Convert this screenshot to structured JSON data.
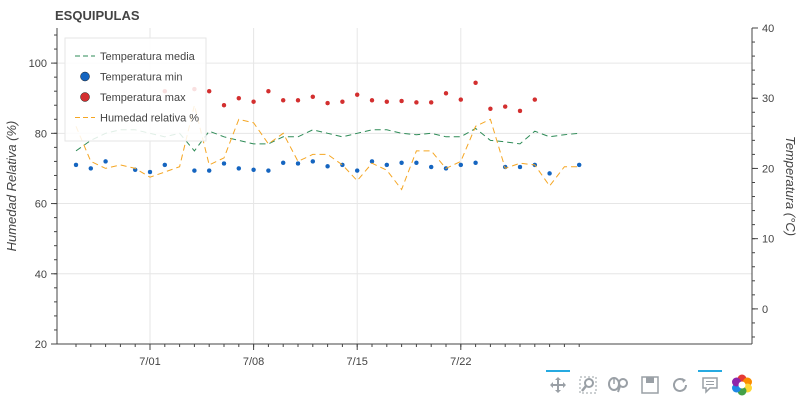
{
  "chart_data": {
    "type": "line",
    "title": "ESQUIPULAS",
    "ylabel": "Humedad Relativa (%)",
    "ylabel_right": "Temperatura (°C)",
    "ylim": [
      20,
      110
    ],
    "ylim_right": [
      -5,
      40
    ],
    "yticks": [
      20,
      40,
      60,
      80,
      100
    ],
    "yticks_right": [
      0,
      10,
      20,
      30,
      40
    ],
    "x_start": "2023-06-26",
    "x": [
      "2023-06-26",
      "2023-06-27",
      "2023-06-28",
      "2023-06-29",
      "2023-06-30",
      "2023-07-01",
      "2023-07-02",
      "2023-07-03",
      "2023-07-04",
      "2023-07-05",
      "2023-07-06",
      "2023-07-07",
      "2023-07-08",
      "2023-07-09",
      "2023-07-10",
      "2023-07-11",
      "2023-07-12",
      "2023-07-13",
      "2023-07-14",
      "2023-07-15",
      "2023-07-16",
      "2023-07-17",
      "2023-07-18",
      "2023-07-19",
      "2023-07-20",
      "2023-07-21",
      "2023-07-22",
      "2023-07-23",
      "2023-07-24",
      "2023-07-25",
      "2023-07-26",
      "2023-07-27",
      "2023-07-28",
      "2023-07-29",
      "2023-07-30"
    ],
    "xtick_labels": [
      {
        "day": 5,
        "label": "7/01"
      },
      {
        "day": 12,
        "label": "7/08"
      },
      {
        "day": 19,
        "label": "7/15"
      },
      {
        "day": 26,
        "label": "7/22"
      }
    ],
    "legend_position": "top-left",
    "grid": true,
    "series": [
      {
        "name": "Temperatura media",
        "axis": "right",
        "style": "dashed-line",
        "color": "#2e8b57",
        "values": [
          22.5,
          24.0,
          25.0,
          25.5,
          25.5,
          25.0,
          24.5,
          25.0,
          22.5,
          25.3,
          24.5,
          24.0,
          23.5,
          23.5,
          24.5,
          24.5,
          25.5,
          25.0,
          24.5,
          25.0,
          25.5,
          25.5,
          25.0,
          24.8,
          25.0,
          24.5,
          24.5,
          25.7,
          24.0,
          23.8,
          23.5,
          25.3,
          24.5,
          24.8,
          25.0
        ]
      },
      {
        "name": "Temperatura min",
        "axis": "right",
        "style": "points",
        "color": "#1565c0",
        "values": [
          20.5,
          20.0,
          21.0,
          null,
          19.8,
          19.5,
          20.5,
          null,
          19.7,
          19.7,
          20.7,
          20.0,
          19.8,
          19.7,
          20.8,
          20.7,
          21.0,
          20.3,
          20.5,
          19.7,
          21.0,
          20.5,
          20.8,
          20.8,
          20.2,
          20.0,
          20.5,
          20.8,
          null,
          20.2,
          20.2,
          20.5,
          19.3,
          null,
          20.5
        ]
      },
      {
        "name": "Temperatura max",
        "axis": "right",
        "style": "points",
        "color": "#d32f2f",
        "values": [
          null,
          null,
          null,
          null,
          null,
          null,
          31.0,
          null,
          31.3,
          31.0,
          29.0,
          30.0,
          29.5,
          31.0,
          29.7,
          29.7,
          30.2,
          29.3,
          29.5,
          30.5,
          29.7,
          29.5,
          29.6,
          29.4,
          29.4,
          30.7,
          29.8,
          32.2,
          28.5,
          28.8,
          28.2,
          29.8,
          null,
          null,
          null
        ]
      },
      {
        "name": "Humedad relativa %",
        "axis": "left",
        "style": "dashed-line",
        "color": "#f5a623",
        "values": [
          82.0,
          72.0,
          70.0,
          71.0,
          70.0,
          67.5,
          69.0,
          70.5,
          88.0,
          71.0,
          73.0,
          84.0,
          83.0,
          77.0,
          80.0,
          72.0,
          74.0,
          74.0,
          71.0,
          66.5,
          71.5,
          69.5,
          64.0,
          75.0,
          75.0,
          70.0,
          72.0,
          82.0,
          84.0,
          70.0,
          71.5,
          71.0,
          65.0,
          70.5,
          70.5
        ]
      }
    ]
  }
}
